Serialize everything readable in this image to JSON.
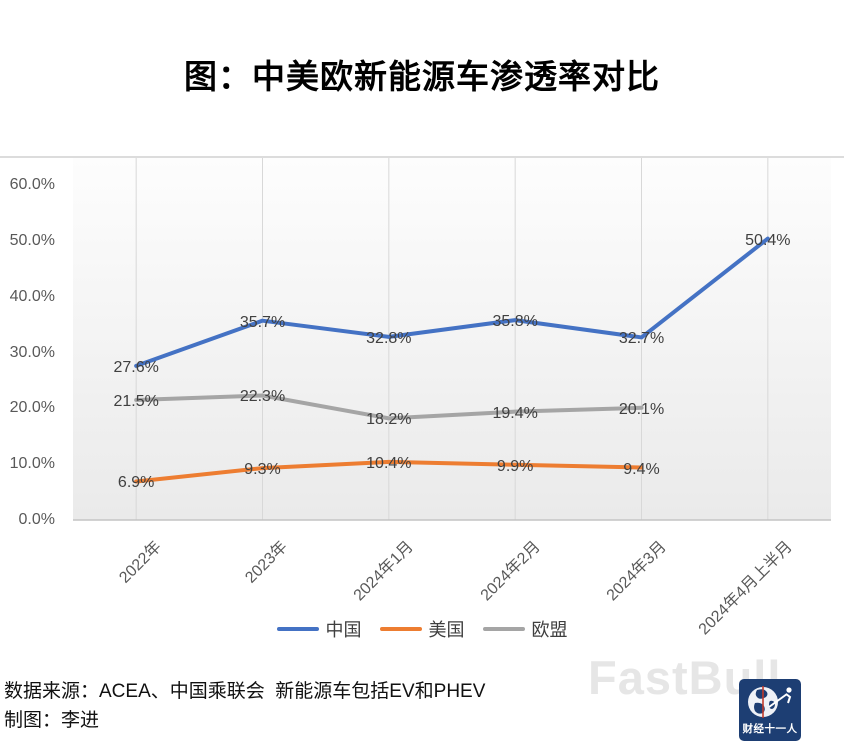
{
  "title": "图：中美欧新能源车渗透率对比",
  "chart_data": {
    "type": "line",
    "title": "图：中美欧新能源车渗透率对比",
    "categories": [
      "2022年",
      "2023年",
      "2024年1月",
      "2024年2月",
      "2024年3月",
      "2024年4月上半月"
    ],
    "series": [
      {
        "name": "中国",
        "color": "#4472C4",
        "values": [
          27.6,
          35.7,
          32.8,
          35.8,
          32.7,
          50.4
        ]
      },
      {
        "name": "美国",
        "color": "#ED7D31",
        "values": [
          6.9,
          9.3,
          10.4,
          9.9,
          9.4,
          null
        ]
      },
      {
        "name": "欧盟",
        "color": "#A5A5A5",
        "values": [
          21.5,
          22.3,
          18.2,
          19.4,
          20.1,
          null
        ]
      }
    ],
    "y_ticks": [
      "60.0%",
      "50.0%",
      "40.0%",
      "30.0%",
      "20.0%",
      "10.0%",
      "0.0%"
    ],
    "ylim": [
      0,
      60
    ],
    "xlabel": "",
    "ylabel": "",
    "data_label_suffix": "%",
    "grid": "vertical-only",
    "legend_position": "bottom"
  },
  "footer": {
    "source_line": "数据来源：ACEA、中国乘联会  新能源车包括EV和PHEV",
    "author_line": "制图：李进"
  },
  "watermark": "FastBull",
  "logo": {
    "text": "财经十一人"
  }
}
